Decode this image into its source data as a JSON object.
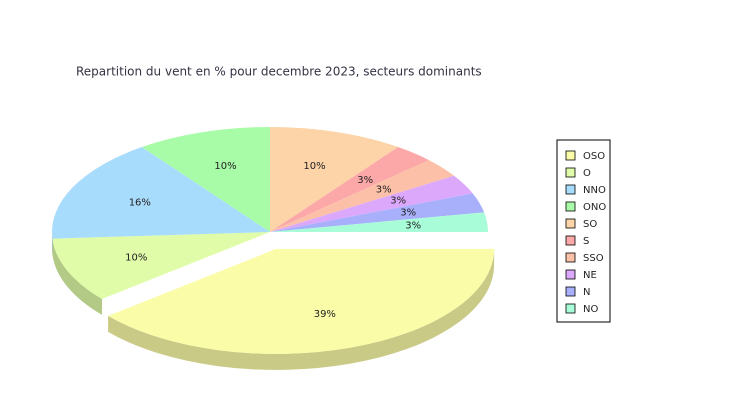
{
  "chart_data": {
    "type": "pie",
    "title": "Repartition du vent en % pour decembre 2023, secteurs dominants",
    "categories": [
      "OSO",
      "O",
      "NNO",
      "ONO",
      "SO",
      "S",
      "SSO",
      "NE",
      "N",
      "NO"
    ],
    "values": [
      39,
      10,
      16,
      10,
      10,
      3,
      3,
      3,
      3,
      3
    ],
    "value_labels": [
      "39%",
      "10%",
      "16%",
      "10%",
      "10%",
      "3%",
      "3%",
      "3%",
      "3%",
      "3%"
    ],
    "colors": [
      "#fbfca8",
      "#e0fca8",
      "#a8dcfc",
      "#a8fca8",
      "#fcd4a8",
      "#fca8a8",
      "#fcc0a8",
      "#dca8fc",
      "#a8b0fc",
      "#a8fcd8"
    ],
    "legend": "right"
  }
}
